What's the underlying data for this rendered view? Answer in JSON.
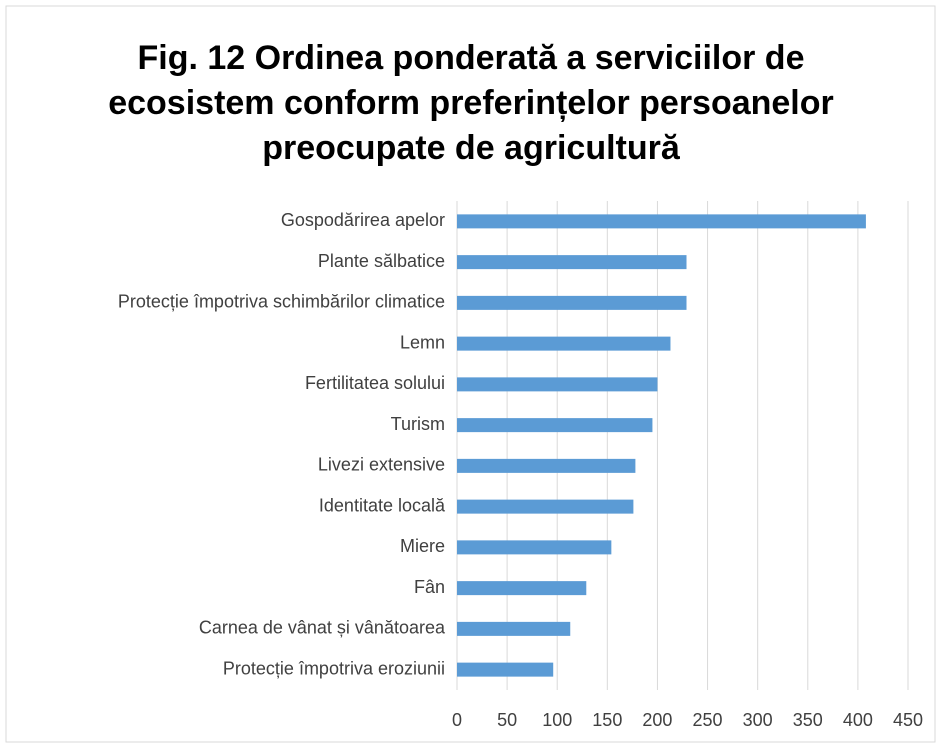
{
  "chart_data": {
    "type": "bar",
    "orientation": "horizontal",
    "title": [
      "Fig. 12 Ordinea ponderată a serviciilor de",
      "ecosistem conform preferințelor persoanelor",
      "preocupate de  agricultură"
    ],
    "categories": [
      "Gospodărirea apelor",
      "Plante sălbatice",
      "Protecție împotriva schimbărilor climatice",
      "Lemn",
      "Fertilitatea solului",
      "Turism",
      "Livezi extensive",
      "Identitate locală",
      "Miere",
      "Fân",
      "Carnea de vânat și vânătoarea",
      "Protecție împotriva eroziunii"
    ],
    "values": [
      408,
      229,
      229,
      213,
      200,
      195,
      178,
      176,
      154,
      129,
      113,
      96
    ],
    "color": "#5b9bd5",
    "xlim": [
      0,
      450
    ],
    "xticks": [
      0,
      50,
      100,
      150,
      200,
      250,
      300,
      350,
      400,
      450
    ],
    "grid": true
  }
}
